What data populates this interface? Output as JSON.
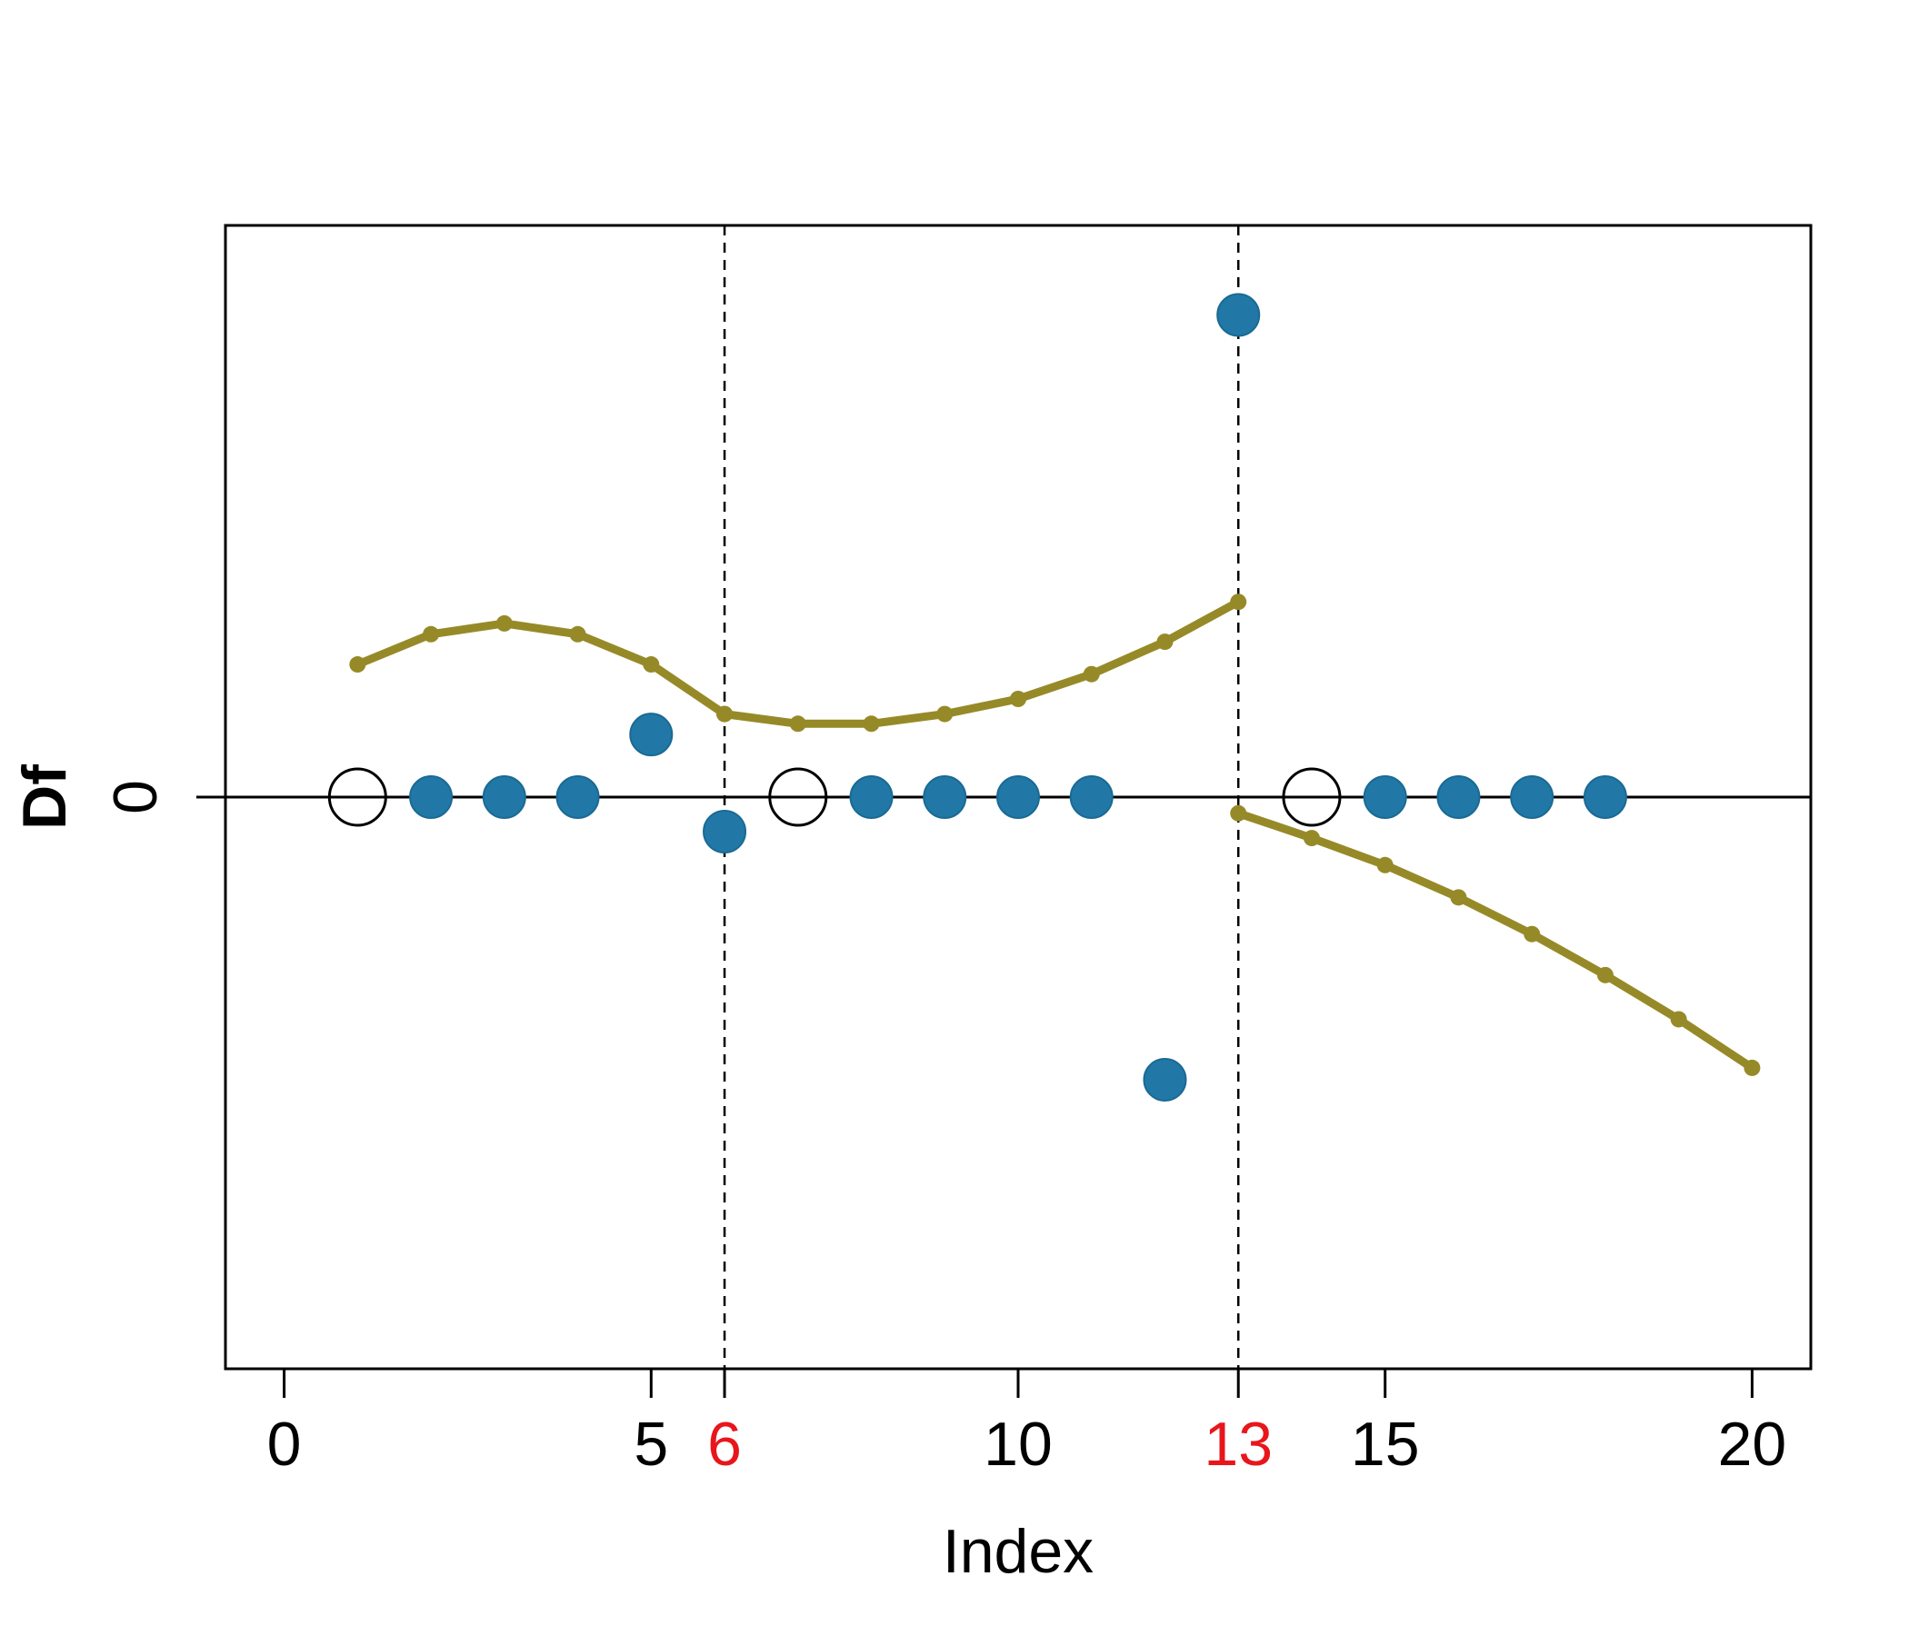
{
  "chart_data": {
    "type": "scatter",
    "xlabel": "Index",
    "ylabel": "Df",
    "xlim": [
      -0.8,
      20.8
    ],
    "ylim": [
      -5.3,
      5.3
    ],
    "x_ticks": [
      {
        "value": 0,
        "label": "0",
        "highlight": false
      },
      {
        "value": 5,
        "label": "5",
        "highlight": false
      },
      {
        "value": 6,
        "label": "6",
        "highlight": true
      },
      {
        "value": 10,
        "label": "10",
        "highlight": false
      },
      {
        "value": 13,
        "label": "13",
        "highlight": true
      },
      {
        "value": 15,
        "label": "15",
        "highlight": false
      },
      {
        "value": 20,
        "label": "20",
        "highlight": false
      }
    ],
    "y_ticks": [
      {
        "value": 0,
        "label": "0"
      }
    ],
    "breakpoints": [
      6,
      13
    ],
    "reference_line_y": 0,
    "points_filled": [
      {
        "x": 2,
        "y": 0
      },
      {
        "x": 3,
        "y": 0
      },
      {
        "x": 4,
        "y": 0
      },
      {
        "x": 5,
        "y": 0.58
      },
      {
        "x": 6,
        "y": -0.32
      },
      {
        "x": 8,
        "y": 0
      },
      {
        "x": 9,
        "y": 0
      },
      {
        "x": 10,
        "y": 0
      },
      {
        "x": 11,
        "y": 0
      },
      {
        "x": 12,
        "y": -2.62
      },
      {
        "x": 13,
        "y": 4.47
      },
      {
        "x": 15,
        "y": 0
      },
      {
        "x": 16,
        "y": 0
      },
      {
        "x": 17,
        "y": 0
      },
      {
        "x": 18,
        "y": 0
      }
    ],
    "points_open": [
      {
        "x": 1,
        "y": 0
      },
      {
        "x": 7,
        "y": 0
      },
      {
        "x": 14,
        "y": 0
      }
    ],
    "curves": [
      {
        "x": [
          1,
          2,
          3,
          4,
          5,
          6
        ],
        "y": [
          1.23,
          1.51,
          1.61,
          1.51,
          1.23,
          0.77
        ]
      },
      {
        "x": [
          6,
          7,
          8,
          9,
          10,
          11,
          12,
          13
        ],
        "y": [
          0.77,
          0.68,
          0.68,
          0.77,
          0.91,
          1.14,
          1.44,
          1.81
        ]
      },
      {
        "x": [
          13,
          14,
          15,
          16,
          17,
          18,
          19,
          20
        ],
        "y": [
          -0.15,
          -0.38,
          -0.63,
          -0.93,
          -1.27,
          -1.65,
          -2.06,
          -2.51
        ]
      }
    ],
    "colors": {
      "points": "#2178A6",
      "curve": "#968A28",
      "highlight_tick": "#E8161B",
      "axes": "#000000"
    }
  }
}
